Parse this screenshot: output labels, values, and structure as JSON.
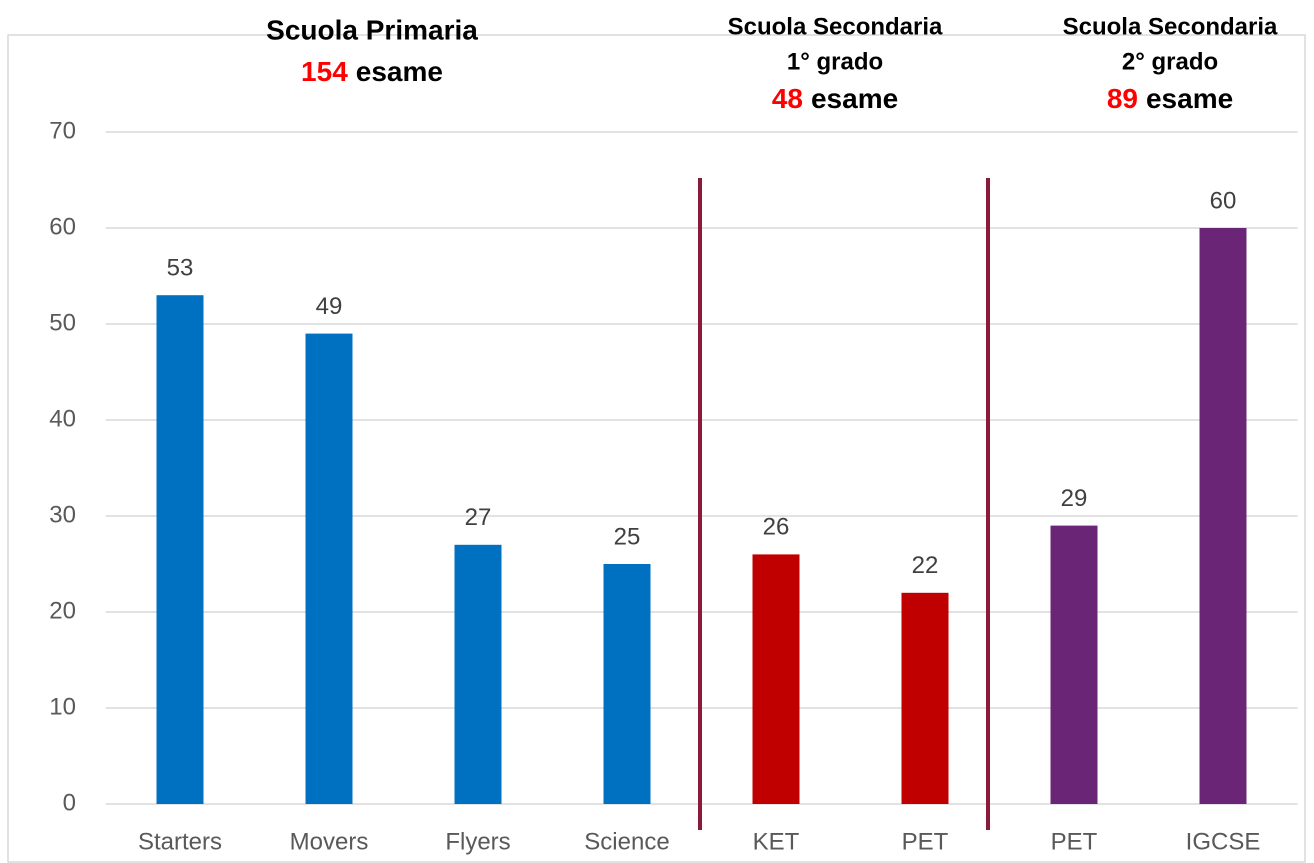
{
  "chart_data": {
    "type": "bar",
    "categories": [
      "Starters",
      "Movers",
      "Flyers",
      "Science",
      "KET",
      "PET",
      "PET",
      "IGCSE"
    ],
    "values": [
      53,
      49,
      27,
      25,
      26,
      22,
      29,
      60
    ],
    "colors": [
      "#0070c0",
      "#0070c0",
      "#0070c0",
      "#0070c0",
      "#c00000",
      "#c00000",
      "#6b2577",
      "#6b2577"
    ],
    "ylim": [
      0,
      70
    ],
    "yticks": [
      0,
      10,
      20,
      30,
      40,
      50,
      60,
      70
    ],
    "grid": true,
    "groups": [
      {
        "title": [
          "Scuola Primaria"
        ],
        "count": 154,
        "unit": "esame"
      },
      {
        "title": [
          "Scuola Secondaria",
          "1° grado"
        ],
        "count": 48,
        "unit": "esame"
      },
      {
        "title": [
          "Scuola Secondaria",
          "2° grado"
        ],
        "count": 89,
        "unit": "esame"
      }
    ]
  }
}
